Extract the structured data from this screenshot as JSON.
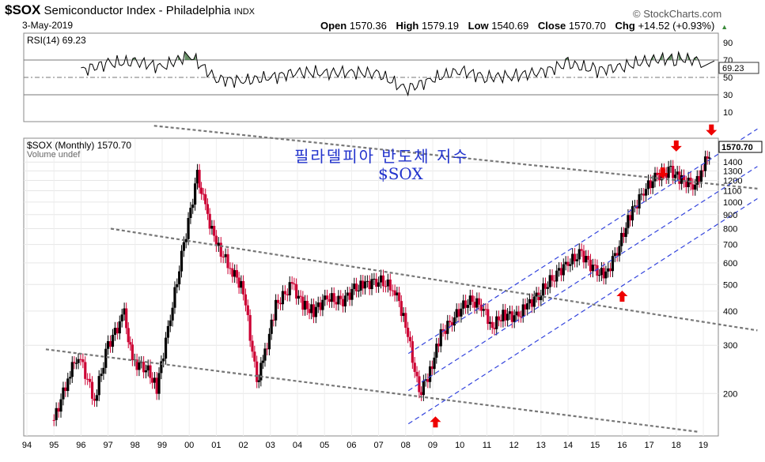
{
  "header": {
    "symbol": "$SOX",
    "name": "Semiconductor Index - Philadelphia",
    "exchange": "INDX",
    "date": "3-May-2019",
    "brand": "© StockCharts.com",
    "open_label": "Open",
    "open": "1570.36",
    "high_label": "High",
    "high": "1579.19",
    "low_label": "Low",
    "low": "1540.69",
    "close_label": "Close",
    "close": "1570.70",
    "chg_label": "Chg",
    "chg": "+14.52 (+0.93%)"
  },
  "rsi_panel": {
    "label": "RSI(14) 69.23",
    "value_tag": "69.23"
  },
  "price_panel": {
    "label": "$SOX (Monthly) 1570.70",
    "volume_label": "Volume undef",
    "value_tag": "1570.70"
  },
  "annotation": {
    "title_korean": "필라델피아 반도체 지수",
    "symbol": "$SOX"
  },
  "colors": {
    "up": "#000000",
    "down": "#cc0033",
    "channel": "#3344dd",
    "trend": "#777777",
    "rsi_fill": "#4a7a4a",
    "arrow": "#ee0000"
  },
  "chart_data": [
    {
      "type": "line",
      "title": "RSI(14) 69.23",
      "ylim": [
        0,
        100
      ],
      "ticks": [
        "90",
        "70",
        "50",
        "30",
        "10"
      ],
      "reference_lines": [
        70,
        50,
        30
      ],
      "x": [
        "96",
        "97",
        "98",
        "99",
        "00",
        "01",
        "02",
        "03",
        "04",
        "05",
        "06",
        "07",
        "08",
        "09",
        "10",
        "11",
        "12",
        "13",
        "14",
        "15",
        "16",
        "17",
        "18",
        "19"
      ],
      "values": [
        58,
        66,
        68,
        62,
        76,
        48,
        46,
        50,
        56,
        55,
        56,
        54,
        36,
        48,
        58,
        50,
        52,
        56,
        66,
        58,
        62,
        70,
        72,
        69
      ]
    },
    {
      "type": "line",
      "title": "$SOX (Monthly) 1570.70",
      "scale": "log",
      "ylim": [
        140,
        1700
      ],
      "x_ticks": [
        "94",
        "95",
        "96",
        "97",
        "98",
        "99",
        "00",
        "01",
        "02",
        "03",
        "04",
        "05",
        "06",
        "07",
        "08",
        "09",
        "10",
        "11",
        "12",
        "13",
        "14",
        "15",
        "16",
        "17",
        "18",
        "19"
      ],
      "y_ticks": [
        "1400",
        "1300",
        "1200",
        "1100",
        "1000",
        "900",
        "800",
        "700",
        "600",
        "500",
        "400",
        "300",
        "200"
      ],
      "series": [
        {
          "name": "$SOX monthly close",
          "x": [
            95.0,
            95.6,
            95.9,
            96.5,
            97.0,
            97.6,
            97.9,
            98.4,
            98.8,
            99.3,
            99.8,
            100.3,
            100.6,
            101.0,
            101.6,
            102.0,
            102.5,
            102.8,
            103.2,
            103.8,
            104.2,
            104.6,
            105.1,
            105.6,
            106.1,
            106.5,
            107.0,
            107.6,
            108.0,
            108.5,
            108.9,
            109.3,
            109.8,
            110.3,
            110.8,
            111.2,
            111.6,
            112.1,
            112.5,
            113.0,
            113.5,
            114.0,
            114.5,
            115.0,
            115.4,
            115.9,
            116.3,
            116.8,
            117.3,
            117.8,
            118.2,
            118.7,
            119.0,
            119.3
          ],
          "values": [
            160,
            240,
            280,
            190,
            300,
            390,
            260,
            250,
            210,
            380,
            700,
            1250,
            950,
            700,
            560,
            480,
            220,
            280,
            420,
            500,
            420,
            400,
            450,
            430,
            480,
            500,
            520,
            480,
            360,
            200,
            240,
            330,
            380,
            440,
            420,
            350,
            390,
            380,
            420,
            470,
            540,
            600,
            650,
            560,
            540,
            700,
            900,
            1100,
            1250,
            1300,
            1200,
            1150,
            1350,
            1570
          ]
        }
      ],
      "annotations": [
        "red arrows marking tops near 17.5, 18.0 and 19.0",
        "red arrows marking bottoms near 09 and 16"
      ]
    }
  ]
}
